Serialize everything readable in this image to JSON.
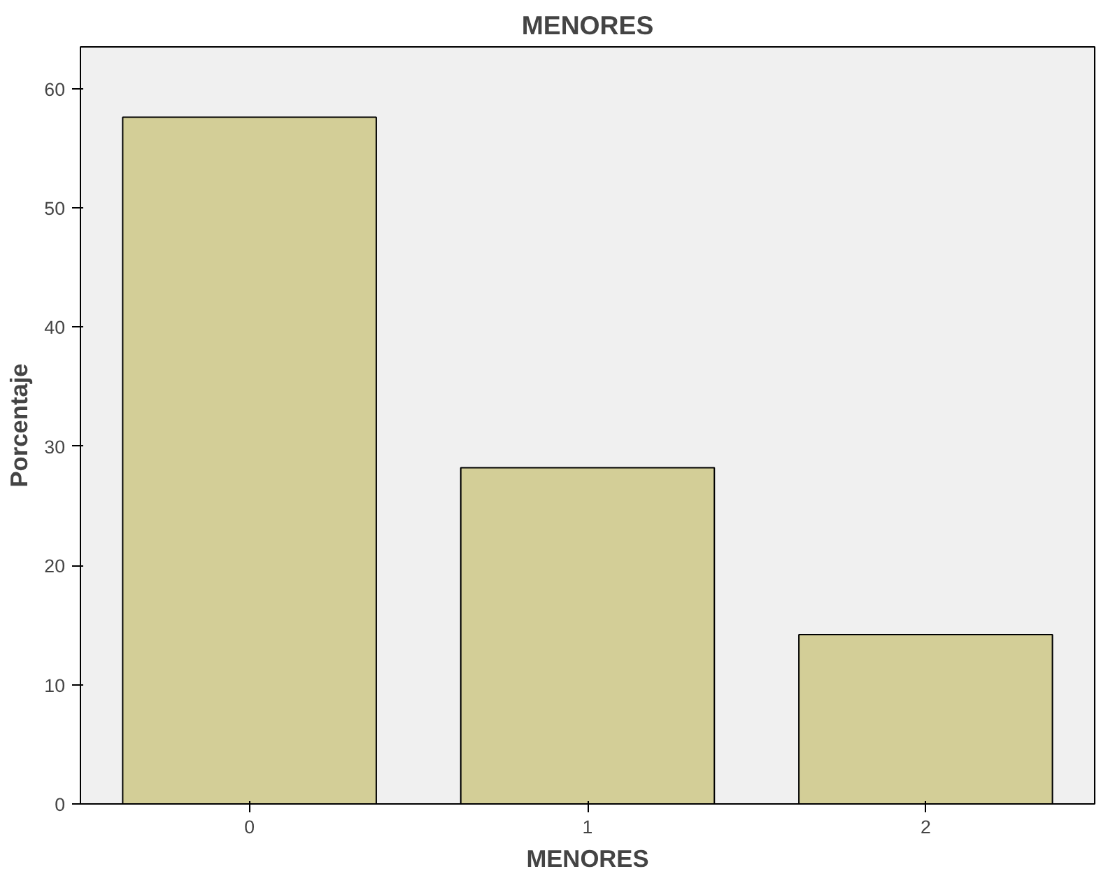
{
  "chart_data": {
    "type": "bar",
    "title": "MENORES",
    "xlabel": "MENORES",
    "ylabel": "Porcentaje",
    "categories": [
      "0",
      "1",
      "2"
    ],
    "values": [
      57.6,
      28.2,
      14.2
    ],
    "color": "#d3ce97",
    "ylim": [
      0,
      63.5
    ],
    "yticks": [
      0,
      10,
      20,
      30,
      40,
      50,
      60
    ],
    "grid": false
  }
}
